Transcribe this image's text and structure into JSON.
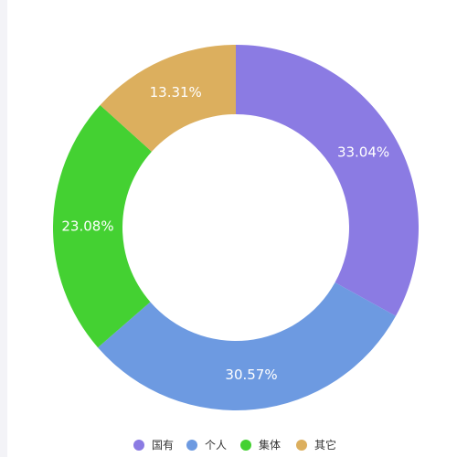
{
  "chart_data": {
    "type": "pie",
    "variant": "donut",
    "categories": [
      "国有",
      "个人",
      "集体",
      "其它"
    ],
    "values": [
      33.04,
      30.57,
      23.08,
      13.31
    ],
    "labels": [
      "33.04%",
      "30.57%",
      "23.08%",
      "13.31%"
    ],
    "colors": [
      "#8b7be3",
      "#6d9ae1",
      "#44d132",
      "#dcaf5e"
    ],
    "legend_position": "bottom",
    "start_angle": "top, clockwise"
  }
}
